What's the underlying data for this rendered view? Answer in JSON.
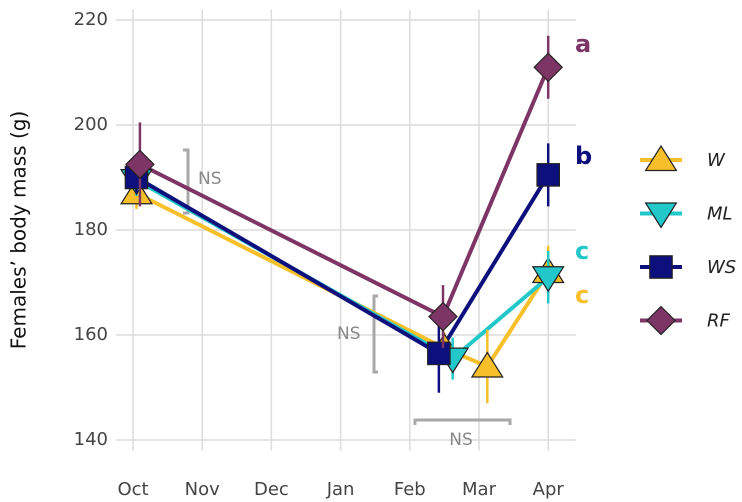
{
  "chart_data": {
    "type": "line",
    "y_label": "Females’ body mass (g)",
    "xlim": [
      -0.25,
      6.4
    ],
    "xticks": [
      {
        "value": 0,
        "label": "Oct"
      },
      {
        "value": 1,
        "label": "Nov"
      },
      {
        "value": 2,
        "label": "Dec"
      },
      {
        "value": 3,
        "label": "Jan"
      },
      {
        "value": 4,
        "label": "Feb"
      },
      {
        "value": 5,
        "label": "Mar"
      },
      {
        "value": 6,
        "label": "Apr"
      }
    ],
    "ylim": [
      138,
      222
    ],
    "yticks": [
      140,
      160,
      180,
      200,
      220
    ],
    "grid": true,
    "series": [
      {
        "name": "W",
        "color": "#f7bf2a",
        "marker": "triangle-up",
        "x": [
          0.05,
          4.5,
          5.12,
          6
        ],
        "values": [
          187,
          157.5,
          154,
          172
        ],
        "errors": [
          3,
          3,
          7,
          5
        ]
      },
      {
        "name": "ML",
        "color": "#22c7c9",
        "marker": "triangle-down",
        "x": [
          0.05,
          4.62,
          6
        ],
        "values": [
          189.5,
          155.5,
          171
        ],
        "errors": [
          3,
          4,
          5
        ]
      },
      {
        "name": "WS",
        "color": "#0d0f7c",
        "marker": "square",
        "x": [
          0.05,
          4.42,
          6
        ],
        "values": [
          190,
          156.5,
          190.5
        ],
        "errors": [
          3,
          7.5,
          6
        ]
      },
      {
        "name": "RF",
        "color": "#7d3566",
        "marker": "diamond",
        "x": [
          0.1,
          4.48,
          6
        ],
        "values": [
          192.5,
          163.5,
          211
        ],
        "errors": [
          8,
          6,
          6
        ]
      }
    ],
    "letters": [
      {
        "text": "a",
        "color": "#7d3566"
      },
      {
        "text": "b",
        "color": "#0d0f7c"
      },
      {
        "text": "c",
        "color": "#22c7c9"
      },
      {
        "text": "c",
        "color": "#f7bf2a"
      }
    ],
    "annotations": [
      "NS",
      "NS",
      "NS"
    ]
  }
}
